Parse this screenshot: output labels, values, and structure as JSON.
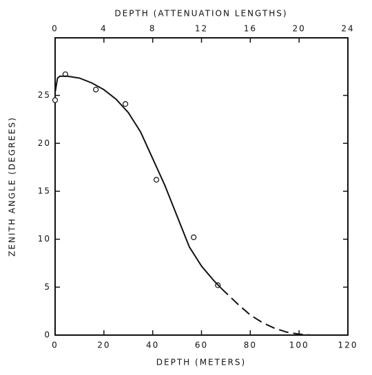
{
  "chart_data": {
    "type": "scatter-line",
    "top_axis_label": "DEPTH (ATTENUATION LENGTHS)",
    "xlabel": "DEPTH (METERS)",
    "ylabel": "ZENITH ANGLE (DEGREES)",
    "xlim": [
      0,
      120
    ],
    "xticks": [
      0,
      20,
      40,
      60,
      80,
      100,
      120
    ],
    "x2lim": [
      0,
      24
    ],
    "x2ticks": [
      0,
      4,
      8,
      12,
      16,
      20,
      24
    ],
    "ylim": [
      0,
      31
    ],
    "yticks": [
      0,
      5,
      10,
      15,
      20,
      25
    ],
    "color": "#111111",
    "series": [
      {
        "type": "scatter",
        "x": [
          0,
          4.2,
          16.7,
          28.8,
          41.5,
          56.8,
          66.7
        ],
        "values": [
          24.5,
          27.2,
          25.6,
          24.1,
          16.2,
          10.2,
          5.2
        ]
      },
      {
        "type": "line",
        "linestyle": "solid",
        "x": [
          0,
          1,
          2,
          5,
          10,
          15,
          20,
          25,
          30,
          35,
          40,
          45,
          50,
          55,
          60,
          65,
          68
        ],
        "values": [
          25.3,
          26.8,
          27,
          27,
          26.8,
          26.3,
          25.6,
          24.6,
          23.2,
          21.2,
          18.4,
          15.6,
          12.4,
          9.2,
          7.2,
          5.7,
          4.9
        ]
      },
      {
        "type": "line",
        "linestyle": "dashed",
        "x": [
          68,
          75,
          80,
          85,
          90,
          95,
          100,
          105,
          110
        ],
        "values": [
          4.9,
          3.2,
          2.1,
          1.3,
          0.7,
          0.3,
          0.1,
          0,
          0
        ]
      }
    ]
  }
}
